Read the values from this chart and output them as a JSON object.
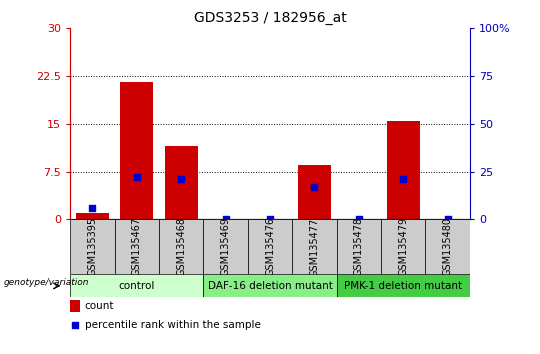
{
  "title": "GDS3253 / 182956_at",
  "samples": [
    "GSM135395",
    "GSM135467",
    "GSM135468",
    "GSM135469",
    "GSM135476",
    "GSM135477",
    "GSM135478",
    "GSM135479",
    "GSM135480"
  ],
  "counts": [
    1.0,
    21.5,
    11.5,
    0.0,
    0.0,
    8.5,
    0.0,
    15.5,
    0.0
  ],
  "percentile": [
    6.0,
    22.0,
    21.0,
    0.0,
    0.5,
    17.0,
    0.5,
    21.0,
    0.5
  ],
  "groups": [
    {
      "label": "control",
      "start": 0,
      "end": 2,
      "color": "#ccffcc"
    },
    {
      "label": "DAF-16 deletion mutant",
      "start": 3,
      "end": 5,
      "color": "#88ee88"
    },
    {
      "label": "PMK-1 deletion mutant",
      "start": 6,
      "end": 8,
      "color": "#44cc44"
    }
  ],
  "left_yticks": [
    0,
    7.5,
    15,
    22.5,
    30
  ],
  "right_yticks": [
    0,
    25,
    50,
    75,
    100
  ],
  "ylim_left": [
    0,
    30
  ],
  "ylim_right": [
    0,
    100
  ],
  "bar_color": "#cc0000",
  "dot_color": "#0000cc",
  "left_tick_color": "#cc0000",
  "right_tick_color": "#0000bb",
  "bg_color": "#ffffff",
  "sample_bg": "#cccccc",
  "bar_width": 0.75,
  "dot_size": 18,
  "grid_dotted_ticks": [
    7.5,
    15,
    22.5
  ],
  "geno_label": "genotype/variation"
}
